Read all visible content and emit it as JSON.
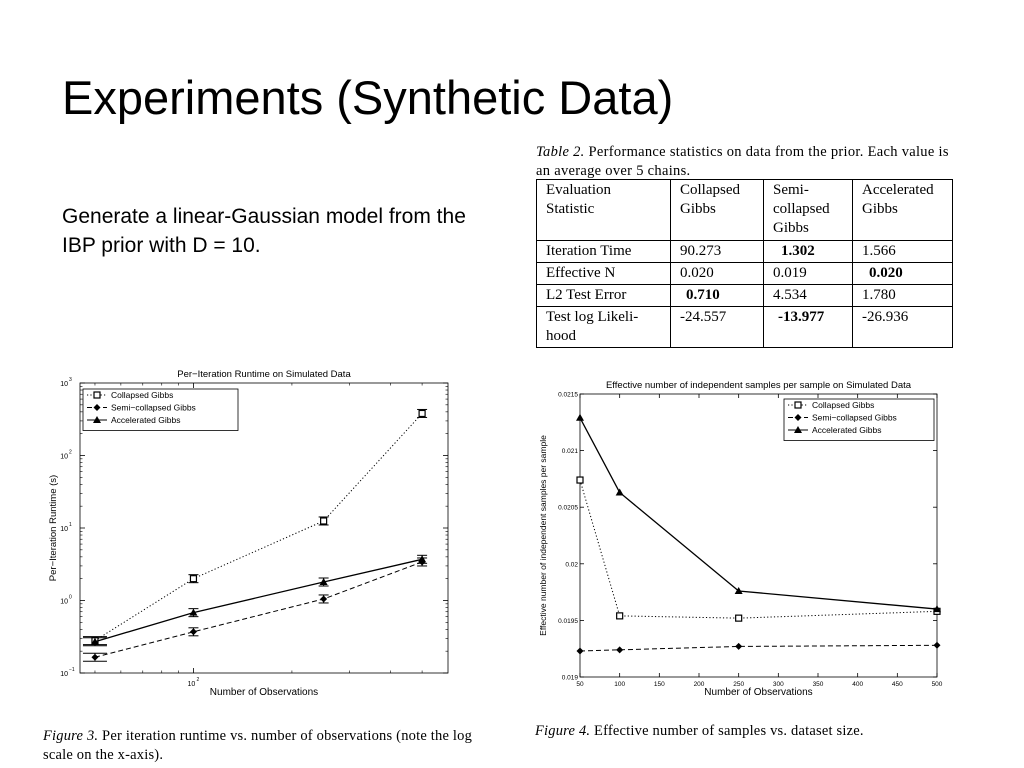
{
  "slide": {
    "title": "Experiments (Synthetic Data)",
    "body": "Generate a linear-Gaussian model from the IBP prior with D = 10."
  },
  "table": {
    "caption_label": "Table 2.",
    "caption_text": " Performance statistics on data from the prior. Each value is an average over 5 chains.",
    "headers": [
      [
        "Evaluation",
        "Statistic"
      ],
      [
        "Collapsed",
        "Gibbs"
      ],
      [
        "Semi-",
        "collapsed",
        "Gibbs"
      ],
      [
        "Accelerated",
        "Gibbs"
      ]
    ],
    "rows": [
      {
        "stat": "Iteration Time",
        "values": [
          "90.273",
          "1.302",
          "1.566"
        ],
        "bold_index": 1
      },
      {
        "stat": "Effective N",
        "values": [
          "0.020",
          "0.019",
          "0.020"
        ],
        "bold_index": 2
      },
      {
        "stat": "L2 Test Error",
        "values": [
          "0.710",
          "4.534",
          "1.780"
        ],
        "bold_index": 0
      },
      {
        "stat": "Test log Likeli- hood",
        "values": [
          "-24.557",
          "-13.977",
          "-26.936"
        ],
        "bold_index": 1
      }
    ]
  },
  "figure3": {
    "caption_label": "Figure 3.",
    "caption_text": " Per iteration runtime vs. number of observations (note the log scale on the x-axis)."
  },
  "figure4": {
    "caption_label": "Figure 4.",
    "caption_text": " Effective number of samples vs. dataset size."
  },
  "chart_data": [
    {
      "type": "line",
      "title": "Per−Iteration Runtime on Simulated Data",
      "xlabel": "Number of Observations",
      "ylabel": "Per−Iteration Runtime (s)",
      "x_scale": "log",
      "y_scale": "log",
      "xlim": [
        45,
        600
      ],
      "ylim": [
        0.1,
        1000
      ],
      "xtick_labels": [
        {
          "value": 100,
          "label": "10",
          "exp": "2"
        }
      ],
      "ytick_labels": [
        {
          "value": 0.1,
          "label": "10",
          "exp": "−1"
        },
        {
          "value": 1,
          "label": "10",
          "exp": "0"
        },
        {
          "value": 10,
          "label": "10",
          "exp": "1"
        },
        {
          "value": 100,
          "label": "10",
          "exp": "2"
        },
        {
          "value": 1000,
          "label": "10",
          "exp": "3"
        }
      ],
      "x": [
        50,
        100,
        250,
        500
      ],
      "series": [
        {
          "name": "Collapsed Gibbs",
          "style": "dotted",
          "marker": "square",
          "values": [
            0.28,
            2.0,
            12.5,
            380
          ]
        },
        {
          "name": "Semi−collapsed Gibbs",
          "style": "dashed",
          "marker": "diamond",
          "values": [
            0.165,
            0.37,
            1.05,
            3.4
          ]
        },
        {
          "name": "Accelerated Gibbs",
          "style": "solid",
          "marker": "triangle",
          "values": [
            0.27,
            0.68,
            1.8,
            3.7
          ]
        }
      ],
      "legend": "top-left"
    },
    {
      "type": "line",
      "title": "Effective number of independent samples per sample on Simulated Data",
      "xlabel": "Number of Observations",
      "ylabel": "Effective number of independent samples per sample",
      "xlim": [
        50,
        500
      ],
      "ylim": [
        0.019,
        0.0215
      ],
      "xticks": [
        50,
        100,
        150,
        200,
        250,
        300,
        350,
        400,
        450,
        500
      ],
      "yticks": [
        0.019,
        0.0195,
        0.02,
        0.0205,
        0.021,
        0.0215
      ],
      "ytick_labels": [
        "0.019",
        "0.0195",
        "0.02",
        "0.0205",
        "0.021",
        "0.0215"
      ],
      "x": [
        50,
        100,
        250,
        500
      ],
      "series": [
        {
          "name": "Collapsed Gibbs",
          "style": "dotted",
          "marker": "square",
          "values": [
            0.02074,
            0.01954,
            0.01952,
            0.01958
          ]
        },
        {
          "name": "Semi−collapsed Gibbs",
          "style": "dashed",
          "marker": "diamond",
          "values": [
            0.01923,
            0.01924,
            0.01927,
            0.01928
          ]
        },
        {
          "name": "Accelerated Gibbs",
          "style": "solid",
          "marker": "triangle",
          "values": [
            0.02129,
            0.02063,
            0.01976,
            0.0196
          ]
        }
      ],
      "legend": "top-right"
    }
  ]
}
